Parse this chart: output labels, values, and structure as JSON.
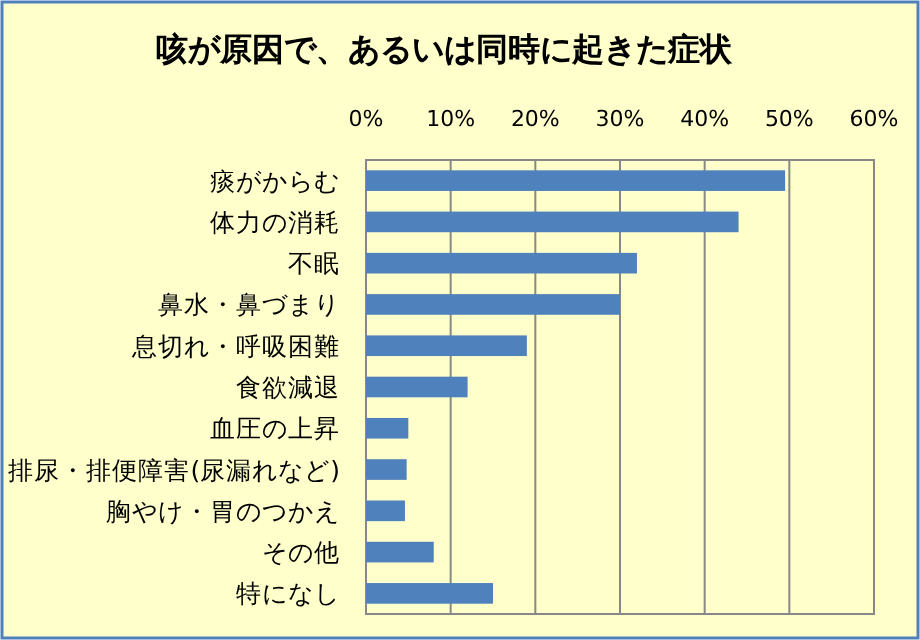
{
  "chart_data": {
    "type": "bar",
    "orientation": "horizontal",
    "title": "咳が原因で、あるいは同時に起きた症状",
    "categories": [
      "痰がからむ",
      "体力の消耗",
      "不眠",
      "鼻水・鼻づまり",
      "息切れ・呼吸困難",
      "食欲減退",
      "血圧の上昇",
      "排尿・排便障害(尿漏れなど)",
      "胸やけ・胃のつかえ",
      "その他",
      "特になし"
    ],
    "values": [
      49.5,
      44,
      32,
      30,
      19,
      12,
      5,
      4.8,
      4.6,
      8,
      15
    ],
    "color": "#4f81bd",
    "xlim": [
      0,
      60
    ],
    "xticks": [
      {
        "value": 0,
        "label": "0%"
      },
      {
        "value": 10,
        "label": "10%"
      },
      {
        "value": 20,
        "label": "20%"
      },
      {
        "value": 30,
        "label": "30%"
      },
      {
        "value": 40,
        "label": "40%"
      },
      {
        "value": 50,
        "label": "50%"
      },
      {
        "value": 60,
        "label": "60%"
      }
    ],
    "grid": "x"
  }
}
